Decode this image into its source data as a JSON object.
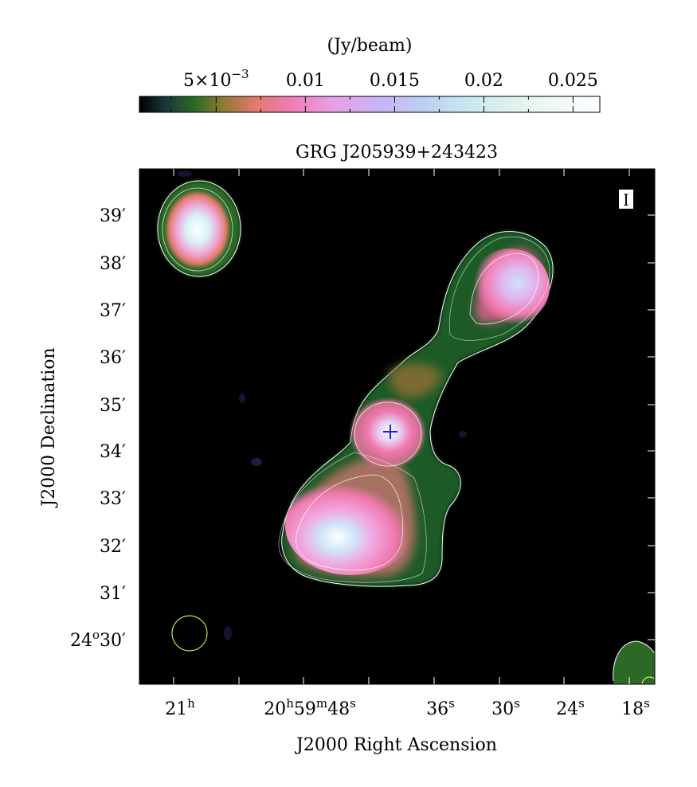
{
  "colorbar": {
    "unit_label": "(Jy/beam)",
    "ticks": [
      {
        "value": 0.005,
        "mantissa": "5×10",
        "exponent": "−3"
      },
      {
        "value": 0.01,
        "text": "0.01"
      },
      {
        "value": 0.015,
        "text": "0.015"
      },
      {
        "value": 0.02,
        "text": "0.02"
      },
      {
        "value": 0.025,
        "text": "0.025"
      }
    ],
    "range": [
      0.0007,
      0.0265
    ]
  },
  "image": {
    "title": "GRG J205939+243423",
    "stokes_label": "I",
    "x_axis_label": "J2000 Right Ascension",
    "y_axis_label": "J2000 Declination",
    "ra_ticks": [
      {
        "h": "21",
        "hu": "h"
      },
      {
        "h": "20",
        "hu": "h",
        "m": "59",
        "mu": "m",
        "s": "48",
        "su": "s"
      },
      {
        "s": "36",
        "su": "s"
      },
      {
        "s": "30",
        "su": "s"
      },
      {
        "s": "24",
        "su": "s"
      },
      {
        "s": "18",
        "su": "s"
      }
    ],
    "dec_ticks": [
      {
        "text": "39′"
      },
      {
        "text": "38′"
      },
      {
        "text": "37′"
      },
      {
        "text": "36′"
      },
      {
        "text": "35′"
      },
      {
        "text": "34′"
      },
      {
        "text": "33′"
      },
      {
        "text": "32′"
      },
      {
        "text": "31′"
      },
      {
        "deg": "24",
        "deg_sym": "o",
        "min": "30′"
      }
    ]
  },
  "colors": {
    "background": "#000000",
    "contour": "#ffffff",
    "marker": "#1a1aff",
    "beam": "#ffff44"
  }
}
